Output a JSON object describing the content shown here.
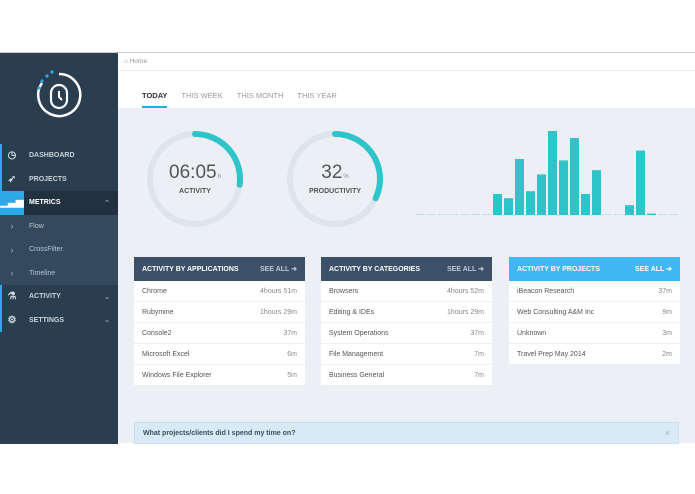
{
  "sidebar": {
    "items": [
      {
        "label": "DASHBOARD",
        "icon": "clock-icon"
      },
      {
        "label": "PROJECTS",
        "icon": "rocket-icon"
      },
      {
        "label": "METRICS",
        "icon": "signal-icon",
        "active": true
      },
      {
        "label": "Flow",
        "icon": "chevron-right-icon"
      },
      {
        "label": "CrossFilter",
        "icon": "chevron-right-icon"
      },
      {
        "label": "Timeline",
        "icon": "chevron-right-icon"
      },
      {
        "label": "ACTIVITY",
        "icon": "flask-icon"
      },
      {
        "label": "SETTINGS",
        "icon": "gear-icon"
      }
    ]
  },
  "breadcrumb": {
    "label": "Home"
  },
  "tabs": [
    "TODAY",
    "THIS WEEK",
    "THIS MONTH",
    "THIS YEAR"
  ],
  "activity": {
    "value": "06:05",
    "unit": "h",
    "label": "ACTIVITY",
    "fill": 0.27
  },
  "productivity": {
    "value": "32",
    "unit": "%",
    "label": "PRODUCTIVITY",
    "fill": 0.32
  },
  "colors": {
    "accent": "#2ec4c9",
    "sidebar": "#2b3e50",
    "blue": "#2ea8e6",
    "panel_header": "#3c5069",
    "panel_header_blue": "#3fb8f2"
  },
  "chart_data": {
    "type": "bar",
    "values": [
      0,
      0,
      0,
      0,
      0,
      0,
      0,
      15,
      12,
      40,
      17,
      29,
      60,
      39,
      55,
      15,
      32,
      0,
      0,
      7,
      46,
      1,
      0,
      0
    ]
  },
  "panels": [
    {
      "title": "ACTIVITY BY APPLICATIONS",
      "see_all": "SEE ALL ➜",
      "rows": [
        [
          "Chrome",
          "4hours 51m"
        ],
        [
          "Rubymine",
          "1hours 29m"
        ],
        [
          "Console2",
          "37m"
        ],
        [
          "Microsoft Excel",
          "6m"
        ],
        [
          "Windows File Explorer",
          "5m"
        ]
      ]
    },
    {
      "title": "ACTIVITY BY CATEGORIES",
      "see_all": "SEE ALL ➜",
      "rows": [
        [
          "Browsers",
          "4hours 52m"
        ],
        [
          "Editing & IDEs",
          "1hours 29m"
        ],
        [
          "System Operations",
          "37m"
        ],
        [
          "File Management",
          "7m"
        ],
        [
          "Business General",
          "7m"
        ]
      ]
    },
    {
      "title": "ACTIVITY BY PROJECTS",
      "see_all": "SEE ALL ➜",
      "rows": [
        [
          "iBeacon Research",
          "37m"
        ],
        [
          "Web Consulting A&M Inc",
          "9m"
        ],
        [
          "Unknown",
          "3m"
        ],
        [
          "Travel Prep May 2014",
          "2m"
        ]
      ]
    }
  ],
  "banner": {
    "text": "What projects/clients did I spend my time on?",
    "close": "×"
  }
}
